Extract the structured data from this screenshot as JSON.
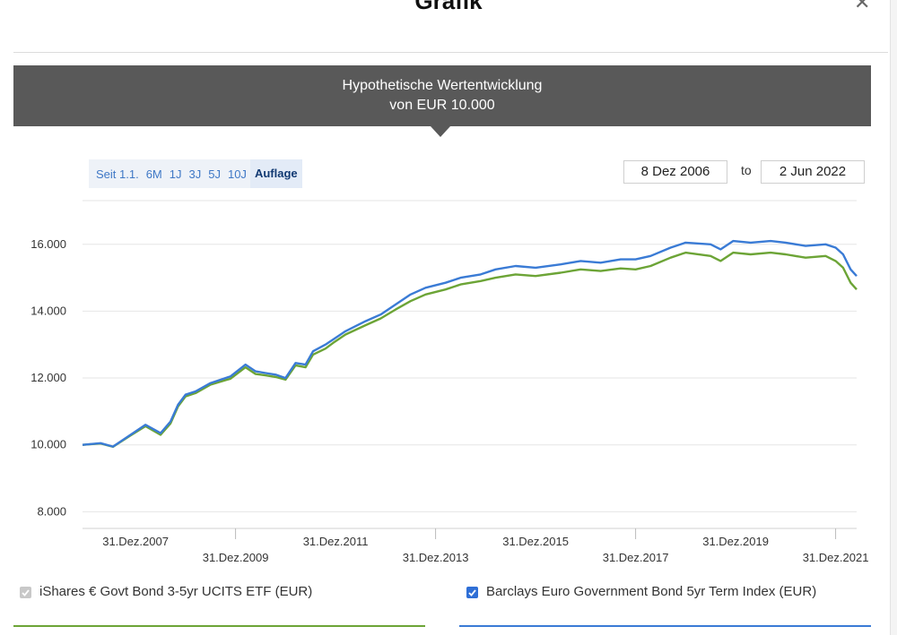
{
  "modal": {
    "title": "Grafik"
  },
  "banner": {
    "line1": "Hypothetische Wertentwicklung",
    "line2": "von EUR 10.000"
  },
  "range_buttons": [
    {
      "label": "Seit 1.1.",
      "active": false
    },
    {
      "label": "6M",
      "active": false
    },
    {
      "label": "1J",
      "active": false
    },
    {
      "label": "3J",
      "active": false
    },
    {
      "label": "5J",
      "active": false
    },
    {
      "label": "10J",
      "active": false
    },
    {
      "label": "Auflage",
      "active": true
    }
  ],
  "date_range": {
    "from": "8 Dez 2006",
    "separator": "to",
    "to": "2 Jun 2022"
  },
  "legend": [
    {
      "label": "iShares € Govt Bond 3-5yr UCITS ETF (EUR)",
      "checked": true,
      "color": "#6ca436"
    },
    {
      "label": "Barclays Euro Government Bond 5yr Term Index (EUR)",
      "checked": true,
      "color": "#3a7bd5"
    }
  ],
  "chart_data": {
    "type": "line",
    "title": "",
    "xlabel": "",
    "ylabel": "",
    "xlim": [
      2006.94,
      2022.42
    ],
    "ylim": [
      7500,
      17200
    ],
    "yticks": [
      8000,
      10000,
      12000,
      14000,
      16000
    ],
    "ytick_labels": [
      "8.000",
      "10.000",
      "12.000",
      "14.000",
      "16.000"
    ],
    "xtick_labels": [
      "31.Dez.2007",
      "31.Dez.2009",
      "31.Dez.2011",
      "31.Dez.2013",
      "31.Dez.2015",
      "31.Dez.2017",
      "31.Dez.2019",
      "31.Dez.2021"
    ],
    "grid": true,
    "series": [
      {
        "name": "Barclays Euro Government Bond 5yr Term Index (EUR)",
        "color": "#3a7bd5",
        "x": [
          2006.94,
          2007.3,
          2007.55,
          2007.9,
          2008.2,
          2008.5,
          2008.7,
          2008.85,
          2009.0,
          2009.2,
          2009.5,
          2009.9,
          2010.2,
          2010.4,
          2010.6,
          2010.8,
          2011.0,
          2011.2,
          2011.4,
          2011.55,
          2011.8,
          2011.95,
          2012.2,
          2012.6,
          2012.9,
          2013.2,
          2013.5,
          2013.8,
          2014.2,
          2014.5,
          2014.9,
          2015.2,
          2015.6,
          2016.0,
          2016.5,
          2016.9,
          2017.3,
          2017.7,
          2018.0,
          2018.3,
          2018.7,
          2019.0,
          2019.5,
          2019.7,
          2019.95,
          2020.3,
          2020.7,
          2021.0,
          2021.4,
          2021.8,
          2022.0,
          2022.15,
          2022.3,
          2022.42
        ],
        "values": [
          10000,
          10050,
          9950,
          10300,
          10600,
          10350,
          10700,
          11200,
          11500,
          11600,
          11850,
          12050,
          12400,
          12200,
          12150,
          12100,
          12000,
          12450,
          12400,
          12800,
          13000,
          13150,
          13400,
          13700,
          13900,
          14200,
          14500,
          14700,
          14850,
          15000,
          15100,
          15250,
          15350,
          15300,
          15400,
          15500,
          15450,
          15550,
          15550,
          15650,
          15900,
          16050,
          16000,
          15850,
          16100,
          16050,
          16100,
          16050,
          15950,
          16000,
          15900,
          15700,
          15250,
          15050
        ]
      },
      {
        "name": "iShares € Govt Bond 3-5yr UCITS ETF (EUR)",
        "color": "#6ca436",
        "x": [
          2006.94,
          2007.3,
          2007.55,
          2007.9,
          2008.2,
          2008.5,
          2008.7,
          2008.85,
          2009.0,
          2009.2,
          2009.5,
          2009.9,
          2010.2,
          2010.4,
          2010.6,
          2010.8,
          2011.0,
          2011.2,
          2011.4,
          2011.55,
          2011.8,
          2011.95,
          2012.2,
          2012.6,
          2012.9,
          2013.2,
          2013.5,
          2013.8,
          2014.2,
          2014.5,
          2014.9,
          2015.2,
          2015.6,
          2016.0,
          2016.5,
          2016.9,
          2017.3,
          2017.7,
          2018.0,
          2018.3,
          2018.7,
          2019.0,
          2019.5,
          2019.7,
          2019.95,
          2020.3,
          2020.7,
          2021.0,
          2021.4,
          2021.8,
          2022.0,
          2022.15,
          2022.3,
          2022.42
        ],
        "values": [
          10000,
          10040,
          9940,
          10280,
          10560,
          10300,
          10640,
          11150,
          11450,
          11550,
          11800,
          11980,
          12320,
          12120,
          12080,
          12030,
          11950,
          12380,
          12320,
          12700,
          12880,
          13050,
          13300,
          13580,
          13780,
          14050,
          14300,
          14500,
          14650,
          14800,
          14900,
          15000,
          15100,
          15050,
          15150,
          15250,
          15200,
          15280,
          15250,
          15350,
          15600,
          15750,
          15650,
          15500,
          15750,
          15700,
          15750,
          15700,
          15600,
          15650,
          15500,
          15300,
          14850,
          14650
        ]
      }
    ]
  }
}
